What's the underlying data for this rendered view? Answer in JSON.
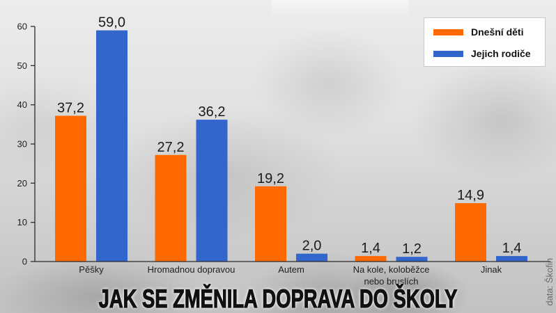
{
  "chart_data": {
    "type": "bar",
    "title": "JAK SE ZMĚNILA DOPRAVA DO ŠKOLY",
    "xlabel": "",
    "ylabel": "",
    "categories": [
      "Pěšky",
      "Hromadnou dopravou",
      "Autem",
      "Na kole, koloběžce\nnebo bruslích",
      "Jinak"
    ],
    "series": [
      {
        "name": "Dnešní děti",
        "color": "#FF6A00",
        "values": [
          37.2,
          27.2,
          19.2,
          1.4,
          14.9
        ],
        "labels": [
          "37,2",
          "27,2",
          "19,2",
          "1,4",
          "14,9"
        ]
      },
      {
        "name": "Jejich rodiče",
        "color": "#3366CC",
        "values": [
          59.0,
          36.2,
          2.0,
          1.2,
          1.4
        ],
        "labels": [
          "59,0",
          "36,2",
          "2,0",
          "1,2",
          "1,4"
        ]
      }
    ],
    "ylim": [
      0,
      60
    ],
    "yticks": [
      0,
      10,
      20,
      30,
      40,
      50,
      60
    ],
    "grid": false,
    "legend": "top-right",
    "source": "data: Škofin"
  }
}
